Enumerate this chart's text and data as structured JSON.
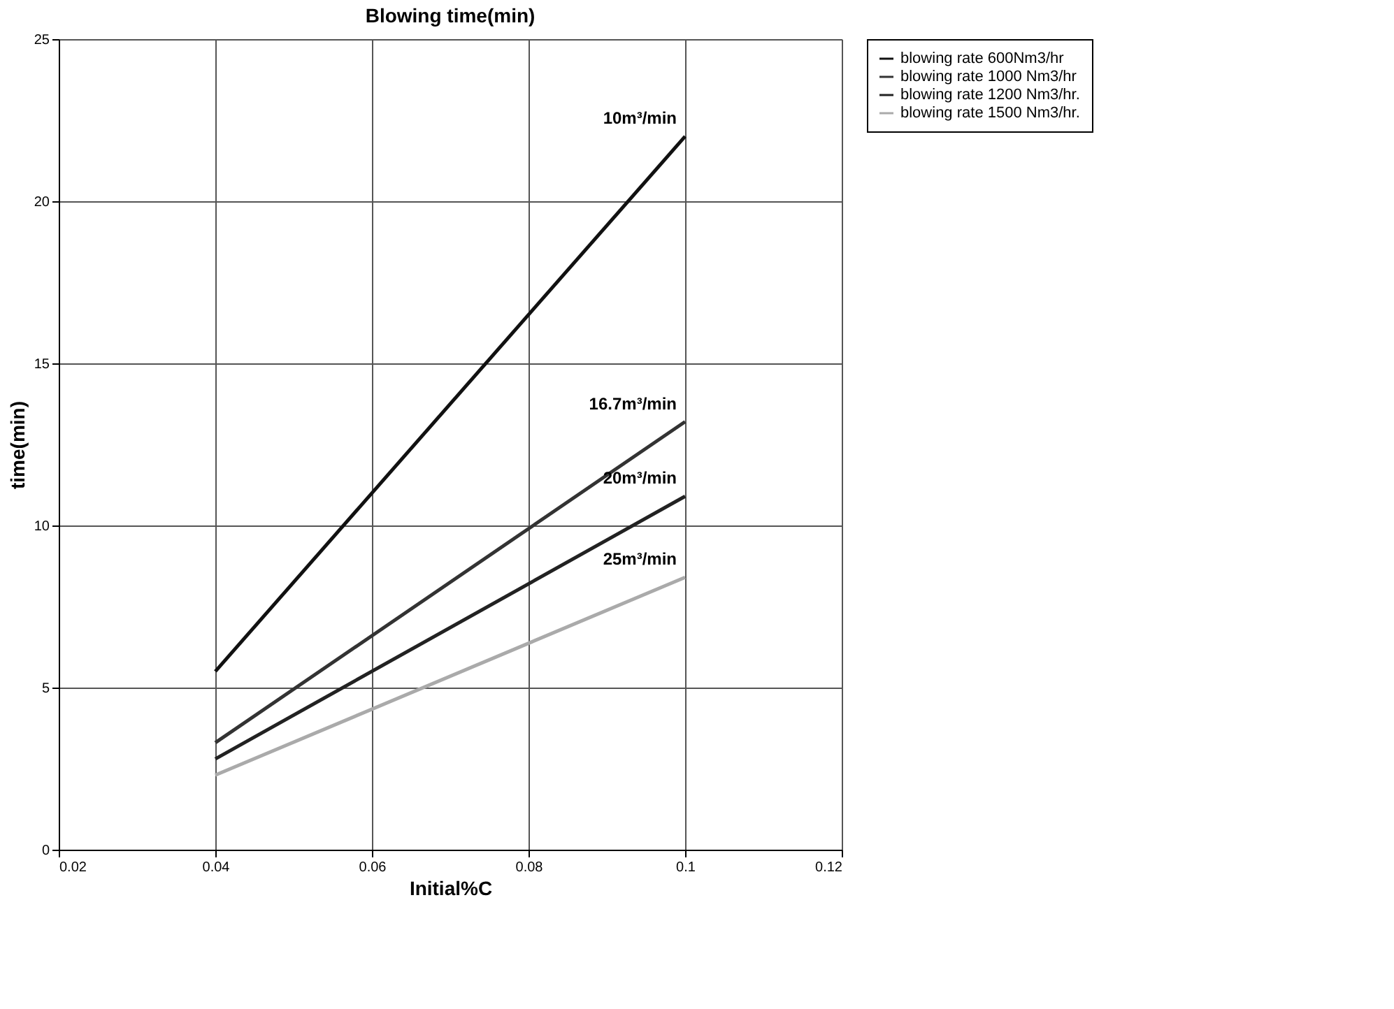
{
  "chart_data": {
    "type": "line",
    "title": "Blowing time(min)",
    "xlabel": "Initial%C",
    "ylabel": "time(min)",
    "x": [
      0.04,
      0.1
    ],
    "series": [
      {
        "name": "blowing rate 600Nm3/hr",
        "color": "#111111",
        "values": [
          5.5,
          22
        ]
      },
      {
        "name": "blowing rate 1000 Nm3/hr",
        "color": "#333333",
        "values": [
          3.3,
          13.2
        ]
      },
      {
        "name": "blowing rate 1200 Nm3/hr.",
        "color": "#222222",
        "values": [
          2.8,
          10.9
        ]
      },
      {
        "name": "blowing rate 1500 Nm3/hr.",
        "color": "#aaaaaa",
        "values": [
          2.3,
          8.4
        ]
      }
    ],
    "annotations": [
      "10m³/min",
      "16.7m³/min",
      "20m³/min",
      "25m³/min"
    ],
    "xlim": [
      0.02,
      0.12
    ],
    "xticks": [
      0.02,
      0.04,
      0.06,
      0.08,
      0.1,
      0.12
    ],
    "ylim": [
      0,
      25
    ],
    "yticks": [
      0,
      5,
      10,
      15,
      20,
      25
    ],
    "grid": true,
    "legend": "right",
    "marker": "none",
    "line_style": "solid"
  }
}
